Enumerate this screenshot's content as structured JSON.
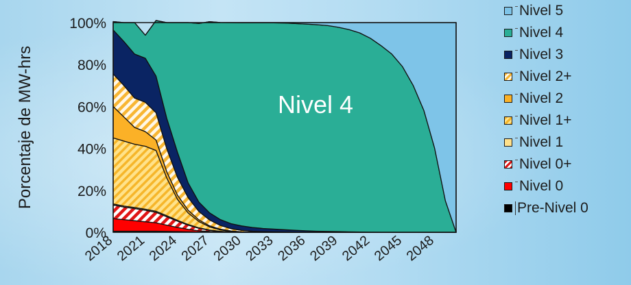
{
  "chart_data": {
    "type": "area",
    "stacked": true,
    "normalized": true,
    "ylabel": "Porcentaje de MW-hrs",
    "xlabel": "",
    "x_ticks": [
      "2018",
      "2021",
      "2024",
      "2027",
      "2030",
      "2033",
      "2036",
      "2039",
      "2042",
      "2045",
      "2048"
    ],
    "y_ticks": [
      "0%",
      "20%",
      "40%",
      "60%",
      "80%",
      "100%"
    ],
    "ylim": [
      0,
      100
    ],
    "xlim": [
      2018,
      2050
    ],
    "annotation": "Nivel 4",
    "grid": false,
    "legend_position": "right",
    "x": [
      2018,
      2019,
      2020,
      2021,
      2022,
      2023,
      2024,
      2025,
      2026,
      2027,
      2028,
      2029,
      2030,
      2031,
      2032,
      2033,
      2034,
      2035,
      2036,
      2037,
      2038,
      2039,
      2040,
      2041,
      2042,
      2043,
      2044,
      2045,
      2046,
      2047,
      2048,
      2049,
      2050
    ],
    "series": [
      {
        "name": "Pre-Nivel 0",
        "color": "#000000",
        "pattern": "solid",
        "values": [
          0.5,
          0.5,
          0.5,
          0.5,
          0.5,
          0.4,
          0.3,
          0.2,
          0.1,
          0.05,
          0,
          0,
          0,
          0,
          0,
          0,
          0,
          0,
          0,
          0,
          0,
          0,
          0,
          0,
          0,
          0,
          0,
          0,
          0,
          0,
          0,
          0,
          0
        ]
      },
      {
        "name": "Nivel 0",
        "color": "#ff0000",
        "pattern": "solid",
        "values": [
          6,
          5.5,
          5,
          4.5,
          4,
          3,
          2,
          1.2,
          0.6,
          0.3,
          0.1,
          0,
          0,
          0,
          0,
          0,
          0,
          0,
          0,
          0,
          0,
          0,
          0,
          0,
          0,
          0,
          0,
          0,
          0,
          0,
          0,
          0,
          0
        ]
      },
      {
        "name": "Nivel 0+",
        "color": "#ff0000",
        "pattern": "hatch-red",
        "values": [
          6.5,
          6,
          5.8,
          5.5,
          5,
          4,
          3,
          2,
          1.2,
          0.6,
          0.3,
          0.1,
          0,
          0,
          0,
          0,
          0,
          0,
          0,
          0,
          0,
          0,
          0,
          0,
          0,
          0,
          0,
          0,
          0,
          0,
          0,
          0,
          0
        ]
      },
      {
        "name": "Nivel 1",
        "color": "#ffe08a",
        "pattern": "solid",
        "values": [
          0.5,
          0.5,
          0.5,
          0.5,
          0.5,
          0.5,
          0.4,
          0.3,
          0.2,
          0.1,
          0.05,
          0,
          0,
          0,
          0,
          0,
          0,
          0,
          0,
          0,
          0,
          0,
          0,
          0,
          0,
          0,
          0,
          0,
          0,
          0,
          0,
          0,
          0
        ]
      },
      {
        "name": "Nivel 1+",
        "color": "#ffc000",
        "pattern": "hatch-yellow",
        "values": [
          31.5,
          31,
          30.2,
          30,
          29,
          18,
          10,
          5.5,
          3,
          1.5,
          0.7,
          0.3,
          0.1,
          0.05,
          0,
          0,
          0,
          0,
          0,
          0,
          0,
          0,
          0,
          0,
          0,
          0,
          0,
          0,
          0,
          0,
          0,
          0,
          0
        ]
      },
      {
        "name": "Nivel 2",
        "color": "#fbb127",
        "pattern": "solid",
        "values": [
          15,
          11.5,
          8,
          7,
          5,
          3,
          2,
          1.3,
          0.8,
          0.5,
          0.3,
          0.2,
          0.1,
          0.05,
          0,
          0,
          0,
          0,
          0,
          0,
          0,
          0,
          0,
          0,
          0,
          0,
          0,
          0,
          0,
          0,
          0,
          0,
          0
        ]
      },
      {
        "name": "Nivel 2+",
        "color": "#ffc000",
        "pattern": "hatch-white",
        "values": [
          15.5,
          15,
          14,
          14,
          13,
          11,
          8.5,
          6,
          4,
          2.8,
          1.8,
          1.1,
          0.7,
          0.4,
          0.3,
          0.2,
          0.1,
          0.05,
          0,
          0,
          0,
          0,
          0,
          0,
          0,
          0,
          0,
          0,
          0,
          0,
          0,
          0,
          0
        ]
      },
      {
        "name": "Nivel 3",
        "color": "#0a2463",
        "pattern": "solid",
        "values": [
          21,
          21,
          21,
          21,
          17.5,
          14.5,
          12,
          7,
          4.5,
          3.4,
          2.8,
          2.4,
          2.1,
          1.8,
          1.5,
          1.3,
          1.1,
          0.9,
          0.7,
          0.5,
          0.4,
          0.3,
          0.2,
          0.1,
          0.05,
          0,
          0,
          0,
          0,
          0,
          0,
          0,
          0
        ]
      },
      {
        "name": "Nivel 4",
        "color": "#2aae96",
        "pattern": "solid",
        "values": [
          4,
          9,
          15,
          11,
          26.5,
          45.6,
          61.8,
          76.5,
          85.2,
          91.2,
          94.0,
          95.9,
          96.9,
          97.6,
          98.1,
          98.4,
          98.6,
          98.6,
          98.6,
          98.5,
          98.2,
          97.5,
          96.5,
          95.0,
          92.5,
          89,
          85,
          79,
          70,
          58,
          40,
          15,
          0
        ]
      },
      {
        "name": "Nivel 5",
        "color": "#7ec4e8",
        "pattern": "solid",
        "values": [
          0,
          0,
          0,
          0,
          0,
          0,
          0,
          0,
          0,
          0,
          0,
          0,
          0.1,
          0.1,
          0.1,
          0.1,
          0.2,
          0.45,
          0.7,
          1.0,
          1.4,
          2.2,
          3.3,
          4.9,
          7.45,
          11,
          15,
          21,
          30,
          42,
          60,
          85,
          100
        ]
      }
    ]
  },
  "legend": {
    "items": [
      {
        "label": "Nivel 5"
      },
      {
        "label": "Nivel 4"
      },
      {
        "label": "Nivel 3"
      },
      {
        "label": "Nivel 2+"
      },
      {
        "label": "Nivel 2"
      },
      {
        "label": "Nivel 1+"
      },
      {
        "label": "Nivel 1"
      },
      {
        "label": "Nivel 0+"
      },
      {
        "label": "Nivel 0"
      },
      {
        "label": "Pre-Nivel 0"
      }
    ]
  }
}
